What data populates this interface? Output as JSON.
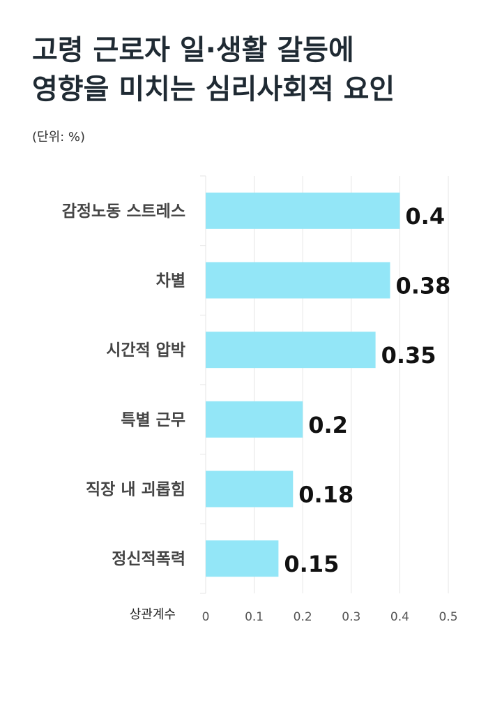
{
  "header": {
    "title_line1": "고령 근로자 일·생활 갈등에",
    "title_line2": "영향을 미치는 심리사회적 요인",
    "unit": "(단위: %)"
  },
  "chart_data": {
    "type": "bar",
    "orientation": "horizontal",
    "title": "고령 근로자 일·생활 갈등에 영향을 미치는 심리사회적 요인",
    "subtitle": "(단위: %)",
    "xlabel": "상관계수",
    "ylabel": "",
    "categories": [
      "감정노동 스트레스",
      "차별",
      "시간적 압박",
      "특별 근무",
      "직장 내 괴롭힘",
      "정신적폭력"
    ],
    "values": [
      0.4,
      0.38,
      0.35,
      0.2,
      0.18,
      0.15
    ],
    "value_labels": [
      "0.4",
      "0.38",
      "0.35",
      "0.2",
      "0.18",
      "0.15"
    ],
    "xlim": [
      0,
      0.5
    ],
    "xticks": [
      0,
      0.1,
      0.2,
      0.3,
      0.4,
      0.5
    ],
    "xtick_labels": [
      "0",
      "0.1",
      "0.2",
      "0.3",
      "0.4",
      "0.5"
    ],
    "grid": true,
    "legend": "none",
    "bar_color": "#93e6f7"
  }
}
